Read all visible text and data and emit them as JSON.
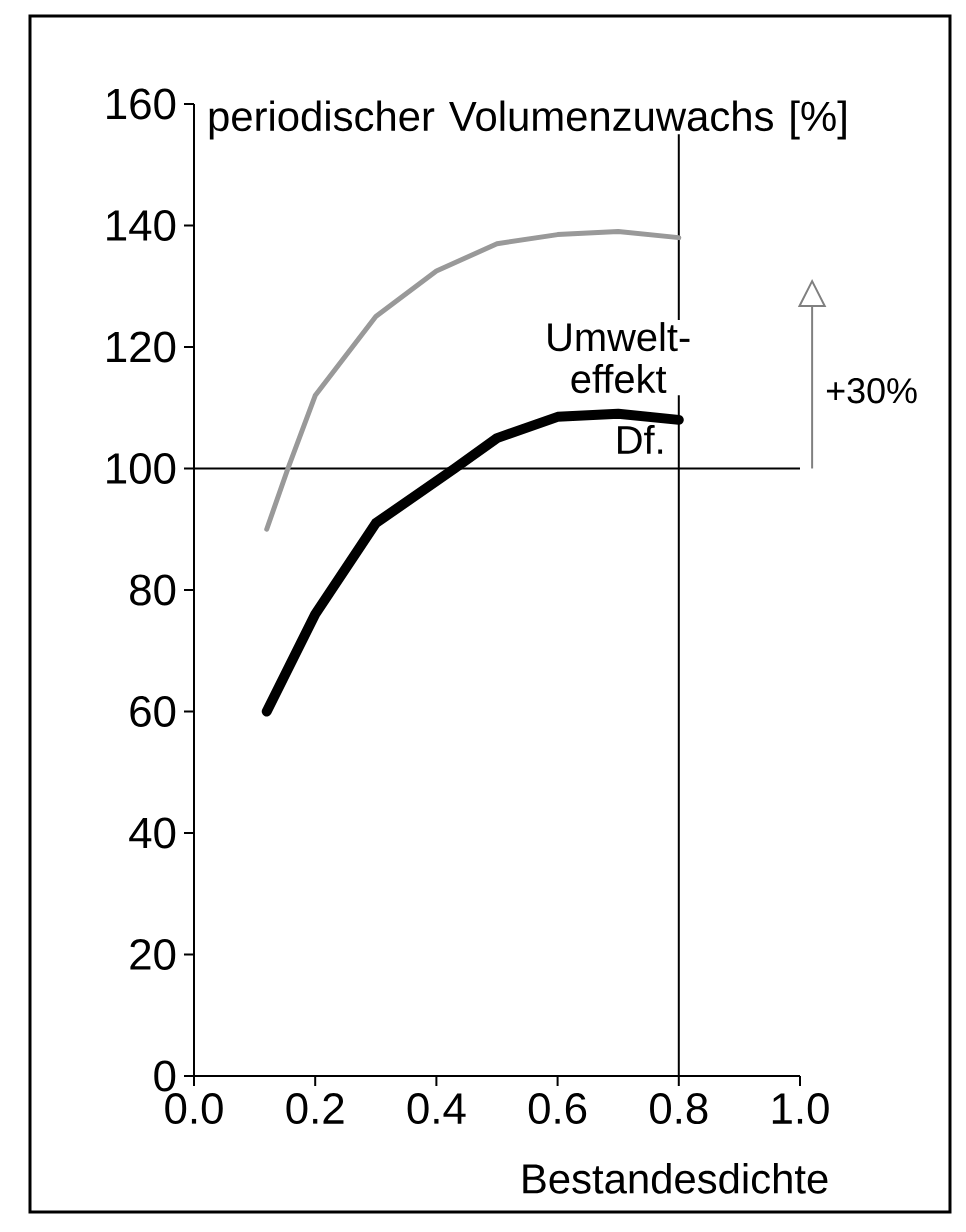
{
  "chart_data": {
    "type": "line",
    "xlabel": "Bestandesdichte",
    "ylabel": "periodischer Volumenzuwachs [%]",
    "xlim": [
      0,
      1
    ],
    "ylim": [
      0,
      160
    ],
    "xticks": [
      {
        "value": 0,
        "label": "0.0"
      },
      0.2,
      0.4,
      0.6,
      0.8,
      {
        "value": 1,
        "label": "1.0"
      }
    ],
    "yticks": [
      0,
      20,
      40,
      60,
      80,
      100,
      120,
      140,
      160
    ],
    "series": [
      {
        "color": "#999999",
        "x": [
          0.12,
          0.155,
          0.2,
          0.3,
          0.4,
          0.5,
          0.6,
          0.7,
          0.8
        ],
        "values": [
          90,
          100,
          112,
          125,
          132.5,
          137,
          138.5,
          139,
          138
        ]
      },
      {
        "color": "#000000",
        "x": [
          0.12,
          0.2,
          0.3,
          0.43,
          0.5,
          0.6,
          0.7,
          0.8
        ],
        "values": [
          60,
          76,
          91,
          100,
          105,
          108.5,
          109,
          108
        ]
      }
    ],
    "ref_lines": [
      {
        "axis": "y",
        "value": 100
      },
      {
        "axis": "x",
        "value": 0.8
      }
    ],
    "annotations": [
      "Umwelt-effekt",
      "+30%",
      "Df."
    ]
  }
}
